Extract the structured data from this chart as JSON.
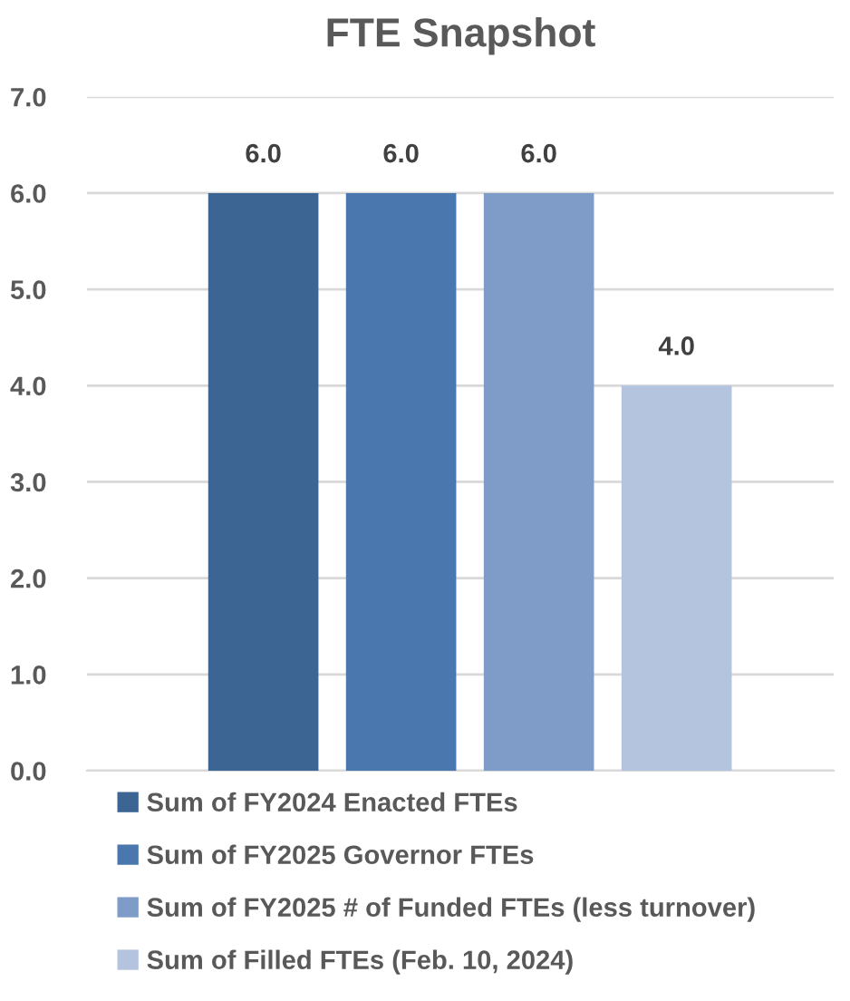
{
  "chart_data": {
    "type": "bar",
    "title": "FTE Snapshot",
    "categories": [
      null
    ],
    "series": [
      {
        "name": "Sum of FY2024 Enacted FTEs",
        "color": "#3d6594",
        "values": [
          6.0
        ],
        "value_labels": [
          "6.0"
        ]
      },
      {
        "name": "Sum of FY2025 Governor FTEs",
        "color": "#4a77ae",
        "values": [
          6.0
        ],
        "value_labels": [
          "6.0"
        ]
      },
      {
        "name": "Sum of FY2025 # of Funded FTEs (less turnover)",
        "color": "#7f9bc8",
        "values": [
          6.0
        ],
        "value_labels": [
          "6.0"
        ]
      },
      {
        "name": "Sum of Filled FTEs (Feb. 10, 2024)",
        "color": "#b4c4de",
        "values": [
          4.0
        ],
        "value_labels": [
          "4.0"
        ]
      }
    ],
    "ylim": [
      0,
      7
    ],
    "yticks": [
      {
        "value": 0,
        "label": "0.0"
      },
      {
        "value": 1,
        "label": "1.0"
      },
      {
        "value": 2,
        "label": "2.0"
      },
      {
        "value": 3,
        "label": "3.0"
      },
      {
        "value": 4,
        "label": "4.0"
      },
      {
        "value": 5,
        "label": "5.0"
      },
      {
        "value": 6,
        "label": "6.0"
      },
      {
        "value": 7,
        "label": "7.0"
      }
    ],
    "grid": "y",
    "legend": "bottom"
  }
}
